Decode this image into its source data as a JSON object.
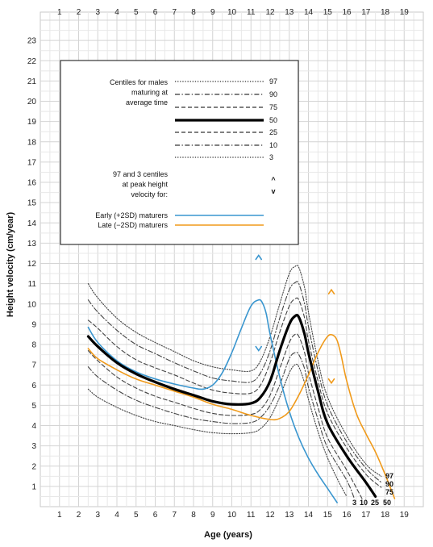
{
  "chart_data": {
    "type": "line",
    "xlabel": "Age (years)",
    "ylabel": "Height velocity (cm/year)",
    "xlim": [
      0,
      19
    ],
    "ylim": [
      0,
      24
    ],
    "x_ticks": [
      "1",
      "2",
      "3",
      "4",
      "5",
      "6",
      "7",
      "8",
      "9",
      "10",
      "11",
      "12",
      "13",
      "14",
      "15",
      "16",
      "17",
      "18",
      "19"
    ],
    "y_ticks": [
      "1",
      "2",
      "3",
      "4",
      "5",
      "6",
      "7",
      "8",
      "9",
      "10",
      "11",
      "12",
      "13",
      "14",
      "15",
      "16",
      "17",
      "18",
      "19",
      "20",
      "21",
      "22",
      "23"
    ],
    "grid": true,
    "legend_position": "top-left",
    "legend": {
      "header": [
        "Centiles for males",
        "maturing at",
        "average time"
      ],
      "centile_entries": [
        {
          "label": "97",
          "style": "dotted"
        },
        {
          "label": "90",
          "style": "dashdot"
        },
        {
          "label": "75",
          "style": "dashed"
        },
        {
          "label": "50",
          "style": "solid-bold"
        },
        {
          "label": "25",
          "style": "dashed"
        },
        {
          "label": "10",
          "style": "dashdot"
        },
        {
          "label": "3",
          "style": "dotted"
        }
      ],
      "peak_note": [
        "97 and 3 centiles",
        "at peak height",
        "velocity for:"
      ],
      "peak_markers": [
        "^",
        "v"
      ],
      "maturer_entries": [
        {
          "label": "Early (+2SD) maturers",
          "color": "#3a96cf"
        },
        {
          "label": "Late (−2SD) maturers",
          "color": "#f09a1a"
        }
      ]
    },
    "end_labels": [
      {
        "text": "97"
      },
      {
        "text": "90"
      },
      {
        "text": "75"
      },
      {
        "text": "3"
      },
      {
        "text": "10"
      },
      {
        "text": "25"
      },
      {
        "text": "50"
      }
    ],
    "peak_annotations": [
      {
        "series": "early",
        "x": 11.4,
        "y": 12.3,
        "glyph": "^"
      },
      {
        "series": "early",
        "x": 11.4,
        "y": 7.8,
        "glyph": "v"
      },
      {
        "series": "late",
        "x": 15.2,
        "y": 10.6,
        "glyph": "^"
      },
      {
        "series": "late",
        "x": 15.2,
        "y": 6.2,
        "glyph": "v"
      }
    ],
    "series": [
      {
        "key": "c97",
        "centile": 97,
        "style": "dotted",
        "color": "#444444",
        "x": [
          2.5,
          3,
          4,
          5,
          6,
          7,
          8,
          9,
          10,
          11,
          11.5,
          12,
          12.5,
          13,
          13.3,
          13.5,
          13.8,
          14,
          14.5,
          15,
          16,
          17,
          17.8
        ],
        "y": [
          11,
          10.3,
          9.3,
          8.6,
          8.1,
          7.65,
          7.2,
          6.9,
          6.75,
          6.7,
          7.2,
          8.4,
          10,
          11.5,
          11.85,
          11.8,
          10.8,
          9.6,
          7.2,
          5.4,
          3.5,
          2.1,
          1.5
        ]
      },
      {
        "key": "c90",
        "centile": 90,
        "style": "dashdot",
        "color": "#444444",
        "x": [
          2.5,
          3,
          4,
          5,
          6,
          7,
          8,
          9,
          10,
          11,
          11.5,
          12,
          12.5,
          13,
          13.3,
          13.5,
          13.8,
          14,
          14.5,
          15,
          16,
          17,
          17.8
        ],
        "y": [
          10.2,
          9.6,
          8.7,
          8,
          7.55,
          7.1,
          6.7,
          6.35,
          6.2,
          6.15,
          6.6,
          7.7,
          9.3,
          10.7,
          11.05,
          11,
          10,
          8.9,
          6.7,
          5,
          3.2,
          1.9,
          1.2
        ]
      },
      {
        "key": "c75",
        "centile": 75,
        "style": "dashed",
        "color": "#444444",
        "x": [
          2.5,
          3,
          4,
          5,
          6,
          7,
          8,
          9,
          10,
          11,
          11.5,
          12,
          12.5,
          13,
          13.3,
          13.5,
          13.8,
          14,
          14.5,
          15,
          16,
          17,
          17.8
        ],
        "y": [
          9.2,
          8.8,
          7.9,
          7.25,
          6.85,
          6.5,
          6.1,
          5.75,
          5.6,
          5.6,
          6,
          7.1,
          8.6,
          9.9,
          10.25,
          10.2,
          9.3,
          8.2,
          6.2,
          4.6,
          2.9,
          1.6,
          0.95
        ]
      },
      {
        "key": "c50",
        "centile": 50,
        "style": "solid-bold",
        "color": "#000000",
        "x": [
          2.5,
          3,
          4,
          5,
          6,
          7,
          8,
          9,
          10,
          11,
          11.5,
          12,
          12.5,
          13,
          13.3,
          13.5,
          13.8,
          14,
          14.5,
          15,
          16,
          17,
          17.5
        ],
        "y": [
          8.4,
          7.9,
          7.1,
          6.55,
          6.15,
          5.8,
          5.5,
          5.2,
          5.05,
          5.1,
          5.4,
          6.2,
          7.7,
          9,
          9.4,
          9.35,
          8.5,
          7.6,
          5.7,
          4.1,
          2.5,
          1.2,
          0.5
        ]
      },
      {
        "key": "c25",
        "centile": 25,
        "style": "dashed",
        "color": "#444444",
        "x": [
          2.5,
          3,
          4,
          5,
          6,
          7,
          8,
          9,
          10,
          11,
          11.5,
          12,
          12.5,
          13,
          13.3,
          13.5,
          13.8,
          14,
          14.5,
          15,
          16,
          16.8
        ],
        "y": [
          7.7,
          7.2,
          6.4,
          5.85,
          5.45,
          5.15,
          4.85,
          4.6,
          4.5,
          4.55,
          4.8,
          5.5,
          6.8,
          8.1,
          8.5,
          8.4,
          7.6,
          6.6,
          4.9,
          3.4,
          1.8,
          0.4
        ]
      },
      {
        "key": "c10",
        "centile": 10,
        "style": "dashdot",
        "color": "#444444",
        "x": [
          2.5,
          3,
          4,
          5,
          6,
          7,
          8,
          9,
          10,
          11,
          11.5,
          12,
          12.5,
          13,
          13.3,
          13.5,
          13.8,
          14,
          14.5,
          15,
          16,
          16.4
        ],
        "y": [
          6.9,
          6.4,
          5.75,
          5.25,
          4.9,
          4.6,
          4.35,
          4.2,
          4.1,
          4.15,
          4.4,
          5,
          6,
          7.3,
          7.6,
          7.5,
          6.8,
          5.9,
          4.3,
          2.9,
          1.3,
          0.4
        ]
      },
      {
        "key": "c3",
        "centile": 3,
        "style": "dotted",
        "color": "#444444",
        "x": [
          2.5,
          3,
          4,
          5,
          6,
          7,
          8,
          9,
          10,
          11,
          11.5,
          12,
          12.5,
          13,
          13.3,
          13.5,
          13.8,
          14,
          14.5,
          15,
          15.6,
          16
        ],
        "y": [
          5.8,
          5.4,
          4.9,
          4.5,
          4.2,
          4,
          3.8,
          3.65,
          3.6,
          3.65,
          3.85,
          4.4,
          5.4,
          6.6,
          7,
          6.9,
          6.1,
          5.3,
          3.7,
          2.4,
          1.2,
          0.5
        ]
      },
      {
        "key": "early",
        "name": "Early (+2SD) maturers",
        "style": "solid",
        "color": "#3a96cf",
        "x": [
          2.5,
          3,
          4,
          5,
          6,
          7,
          8,
          8.5,
          9,
          9.5,
          10,
          10.5,
          11,
          11.4,
          11.6,
          11.8,
          12,
          12.5,
          13,
          13.5,
          14,
          14.5,
          15,
          15.5
        ],
        "y": [
          8.85,
          8.1,
          7.2,
          6.65,
          6.3,
          6.05,
          5.85,
          5.8,
          6,
          6.6,
          7.6,
          8.8,
          9.9,
          10.2,
          10.05,
          9.5,
          8.5,
          6.4,
          4.7,
          3.4,
          2.4,
          1.6,
          0.9,
          0.2
        ]
      },
      {
        "key": "late",
        "name": "Late (−2SD) maturers",
        "style": "solid",
        "color": "#f09a1a",
        "x": [
          2.5,
          3,
          4,
          5,
          6,
          7,
          8,
          9,
          10,
          11,
          12,
          12.5,
          13,
          13.5,
          14,
          14.5,
          15,
          15.3,
          15.5,
          15.7,
          16,
          16.5,
          17,
          17.5,
          18,
          18.5
        ],
        "y": [
          7.8,
          7.3,
          6.75,
          6.3,
          6,
          5.7,
          5.4,
          5.05,
          4.8,
          4.5,
          4.3,
          4.35,
          4.7,
          5.5,
          6.5,
          7.6,
          8.4,
          8.45,
          8.2,
          7.5,
          6.2,
          4.6,
          3.6,
          2.7,
          1.6,
          0.4
        ]
      }
    ]
  }
}
